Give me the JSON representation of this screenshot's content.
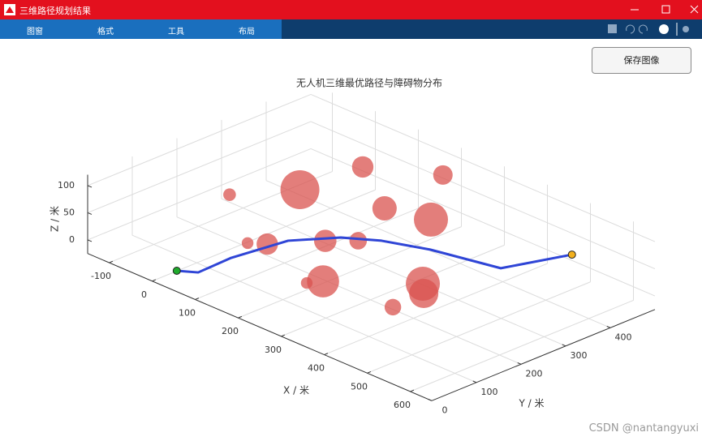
{
  "window": {
    "title": "三维路径规划结果"
  },
  "menu": [
    "图窗",
    "格式",
    "工具",
    "布局"
  ],
  "button": "保存图像",
  "watermark": "CSDN @nantangyuxi",
  "chart_data": {
    "type": "line3d",
    "title": "无人机三维最优路径与障碍物分布",
    "xlabel": "X / 米",
    "ylabel": "Y / 米",
    "zlabel": "Z / 米",
    "xlim": [
      -150,
      650
    ],
    "ylim": [
      0,
      500
    ],
    "zlim": [
      -25,
      120
    ],
    "xticks": [
      -100,
      0,
      100,
      200,
      300,
      400,
      500,
      600
    ],
    "yticks": [
      0,
      100,
      200,
      300,
      400
    ],
    "zticks": [
      0,
      50,
      100
    ],
    "grid": true,
    "path": {
      "color": "#2f45d6",
      "x": [
        52,
        81,
        78,
        95,
        146,
        201,
        281,
        413,
        456
      ],
      "y": [
        5,
        25,
        102,
        213,
        282,
        320,
        352,
        383,
        501
      ],
      "z": [
        10,
        10,
        10,
        10,
        10,
        10,
        10,
        10,
        10
      ]
    },
    "start_color": "#1faa2c",
    "goal_color": "#f2b01e",
    "obstacles": {
      "color": "#d9534f",
      "x": [
        35,
        209,
        27,
        -39,
        175,
        259,
        116,
        141,
        198,
        235,
        308,
        294,
        428,
        456,
        459
      ],
      "y": [
        438,
        450,
        305,
        211,
        352,
        375,
        102,
        122,
        197,
        235,
        86,
        63,
        194,
        169,
        97
      ],
      "z": [
        50,
        90,
        50,
        50,
        50,
        50,
        50,
        50,
        50,
        50,
        50,
        50,
        50,
        50,
        50
      ],
      "r": [
        22,
        20,
        40,
        13,
        25,
        35,
        12,
        22,
        23,
        18,
        33,
        12,
        35,
        30,
        17
      ]
    }
  }
}
